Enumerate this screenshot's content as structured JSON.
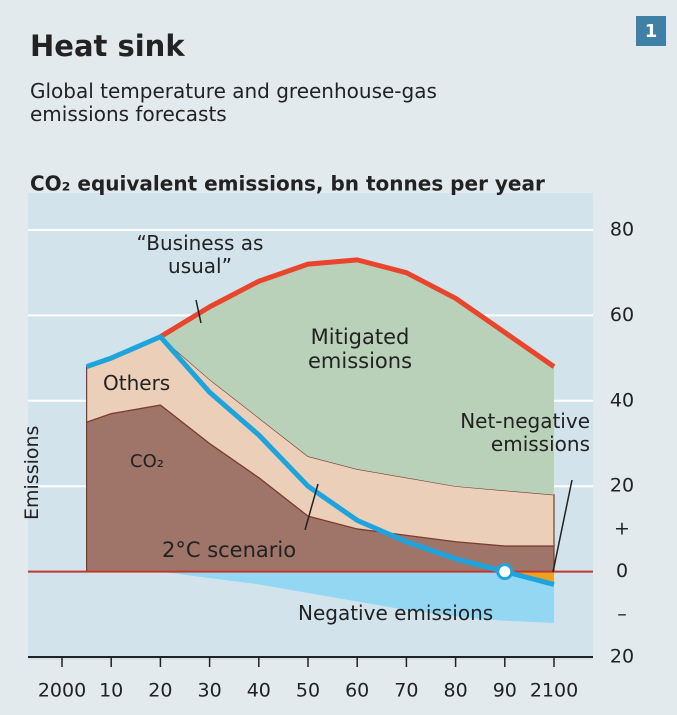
{
  "chart_data": {
    "type": "area",
    "title": "Heat sink",
    "badge": "1",
    "subtitle": "Global temperature and greenhouse-gas emissions forecasts",
    "y_label": "CO₂ equivalent emissions, bn tonnes per year",
    "x": [
      2005,
      2010,
      2020,
      2030,
      2040,
      2050,
      2060,
      2070,
      2080,
      2090,
      2100
    ],
    "series": [
      {
        "name": "CO₂",
        "kind": "stack",
        "color": "#9e7568",
        "values": [
          35,
          37,
          39,
          30,
          22,
          13,
          10,
          8.5,
          7,
          6,
          6
        ]
      },
      {
        "name": "Others",
        "kind": "stack",
        "color": "#ebcfb9",
        "values": [
          13,
          13,
          16,
          15,
          14,
          14,
          14,
          13.5,
          13,
          13,
          12
        ]
      },
      {
        "name": "“Business as usual”",
        "kind": "line",
        "color": "#e8452c",
        "values": [
          null,
          null,
          55,
          62,
          68,
          72,
          73,
          70,
          64,
          56,
          48
        ]
      },
      {
        "name": "Negative emissions",
        "kind": "negative",
        "color": "#93d7f2",
        "values": [
          null,
          null,
          0,
          -1.5,
          -3,
          -5,
          -7,
          -9,
          -10.5,
          -11.5,
          -12
        ]
      },
      {
        "name": "2°C scenario",
        "kind": "line",
        "color": "#1ea4dd",
        "values": [
          48,
          50,
          55,
          42,
          32,
          20,
          12,
          7,
          3,
          0,
          -3
        ]
      }
    ],
    "annotations": [
      "Mitigated emissions",
      "Emissions",
      "Net-negative emissions"
    ],
    "xlim": [
      2000,
      2100
    ],
    "xticks": [
      {
        "value": 2000,
        "label": "2000"
      },
      {
        "value": 2010,
        "label": "10"
      },
      {
        "value": 2020,
        "label": "20"
      },
      {
        "value": 2030,
        "label": "30"
      },
      {
        "value": 2040,
        "label": "40"
      },
      {
        "value": 2050,
        "label": "50"
      },
      {
        "value": 2060,
        "label": "60"
      },
      {
        "value": 2070,
        "label": "70"
      },
      {
        "value": 2080,
        "label": "80"
      },
      {
        "value": 2090,
        "label": "90"
      },
      {
        "value": 2100,
        "label": "2100"
      }
    ],
    "ylim": [
      -20,
      80
    ],
    "yticks": [
      80,
      60,
      40,
      20,
      {
        "value": 10,
        "label": "+"
      },
      0,
      {
        "value": -10,
        "label": "–"
      },
      {
        "value": -20,
        "label": "20"
      }
    ],
    "grid": true
  }
}
